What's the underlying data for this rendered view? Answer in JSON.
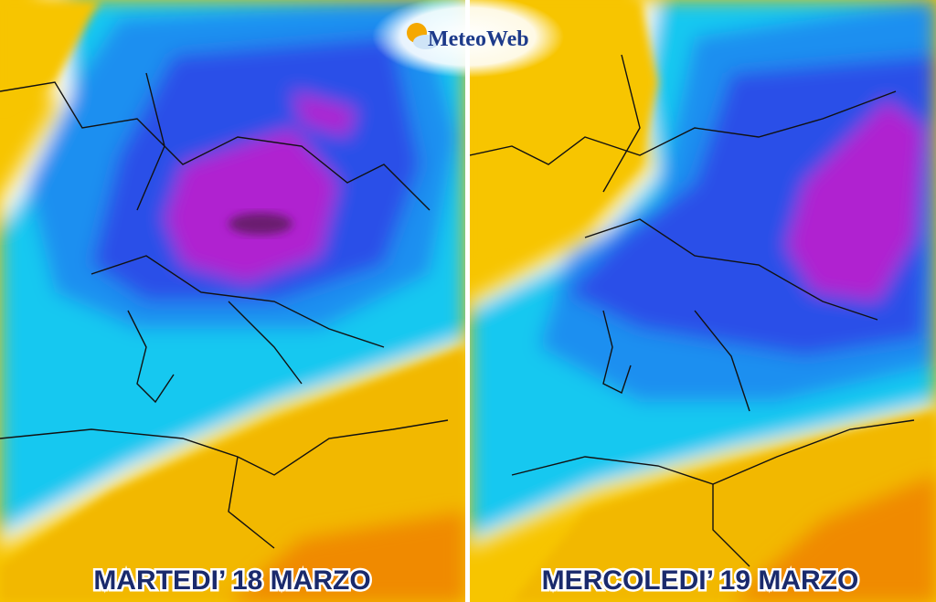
{
  "logo": {
    "text": "MeteoWeb"
  },
  "panels": [
    {
      "label": "MARTEDI’ 18 MARZO"
    },
    {
      "label": "MERCOLEDI’ 19 MARZO"
    }
  ]
}
